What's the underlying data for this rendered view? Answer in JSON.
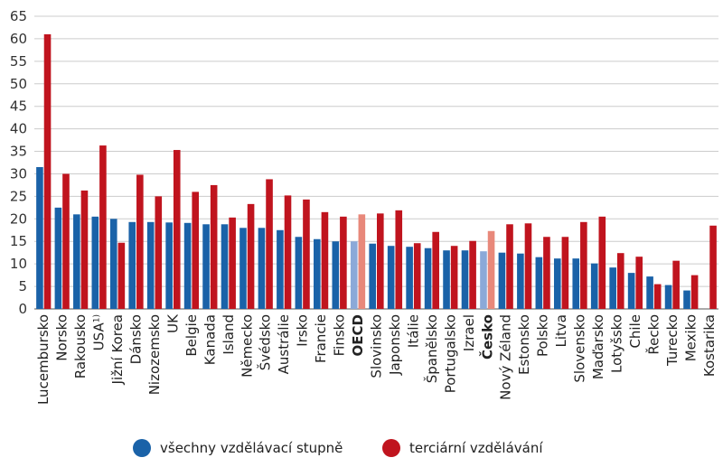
{
  "chart_data": {
    "type": "bar",
    "title": "",
    "xlabel": "",
    "ylabel": "",
    "ylim": [
      0,
      65
    ],
    "yticks": [
      0,
      5,
      10,
      15,
      20,
      25,
      30,
      35,
      40,
      45,
      50,
      55,
      60,
      65
    ],
    "grid": "horizontal",
    "legend_position": "bottom",
    "categories": [
      "Lucembursko",
      "Norsko",
      "Rakousko",
      "USA",
      "Jižní Korea",
      "Dánsko",
      "Nizozemsko",
      "UK",
      "Belgie",
      "Kanada",
      "Island",
      "Německo",
      "Švédsko",
      "Austrálie",
      "Irsko",
      "Francie",
      "Finsko",
      "OECD",
      "Slovinsko",
      "Japonsko",
      "Itálie",
      "Španělsko",
      "Portugalsko",
      "Izrael",
      "Česko",
      "Nový Zéland",
      "Estonsko",
      "Polsko",
      "Litva",
      "Slovensko",
      "Maďarsko",
      "Lotyšsko",
      "Chile",
      "Řecko",
      "Turecko",
      "Mexiko",
      "Kostarika"
    ],
    "category_notes": {
      "USA": "1)"
    },
    "highlighted_categories": [
      "OECD",
      "Česko"
    ],
    "series": [
      {
        "name": "všechny vzdělávací stupně",
        "color": "#1a62a8",
        "highlight_color": "#8ba9d8",
        "values": [
          31.5,
          22.5,
          21,
          20.5,
          20,
          19.3,
          19.3,
          19.2,
          19.1,
          18.8,
          18.8,
          18,
          18,
          17.5,
          16,
          15.5,
          15,
          15,
          14.5,
          14,
          13.8,
          13.5,
          13,
          13,
          12.8,
          12.5,
          12.3,
          11.5,
          11.2,
          11.2,
          10.1,
          9.2,
          8,
          7.2,
          5.3,
          4.1,
          null
        ]
      },
      {
        "name": "terciární vzdělávání",
        "color": "#c0141e",
        "highlight_color": "#e8887a",
        "values": [
          61,
          30,
          26.3,
          36.3,
          14.7,
          29.8,
          25,
          35.3,
          26,
          27.5,
          20.3,
          23.3,
          28.8,
          25.2,
          24.3,
          21.5,
          20.5,
          21,
          21.2,
          21.9,
          14.6,
          17.1,
          14,
          15.1,
          17.3,
          18.8,
          19,
          16,
          16,
          19.3,
          20.5,
          12.4,
          11.6,
          5.5,
          10.7,
          7.5,
          18.5
        ]
      }
    ]
  }
}
